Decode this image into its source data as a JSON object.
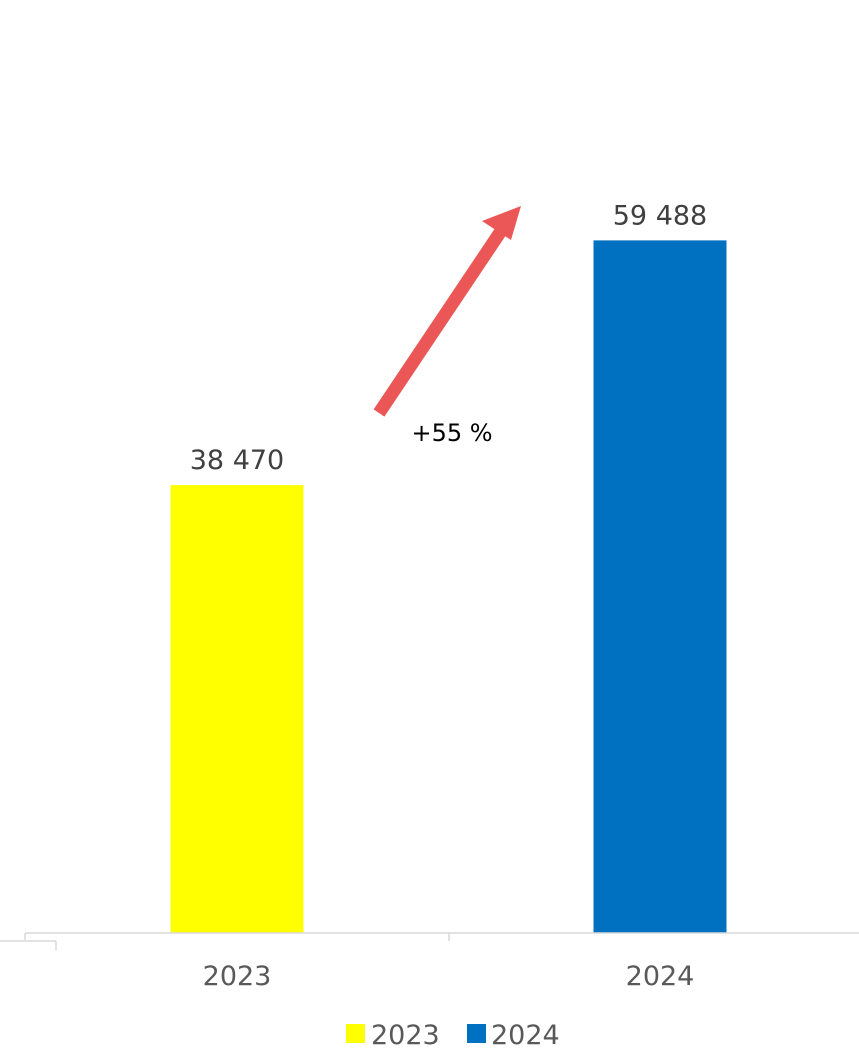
{
  "chart_data": {
    "type": "bar",
    "categories": [
      "2023",
      "2024"
    ],
    "values": [
      38470,
      59488
    ],
    "value_labels": [
      "38 470",
      "59 488"
    ],
    "colors": [
      "#FFFF00",
      "#0070C0"
    ],
    "ylim": [
      0,
      70000
    ],
    "grid": false,
    "legend": {
      "placement": "bottom",
      "entries": [
        {
          "label": "2023",
          "color": "#FFFF00"
        },
        {
          "label": "2024",
          "color": "#0070C0"
        }
      ]
    },
    "annotation": {
      "text": "+55 %",
      "arrow_color": "#EB5757"
    }
  }
}
